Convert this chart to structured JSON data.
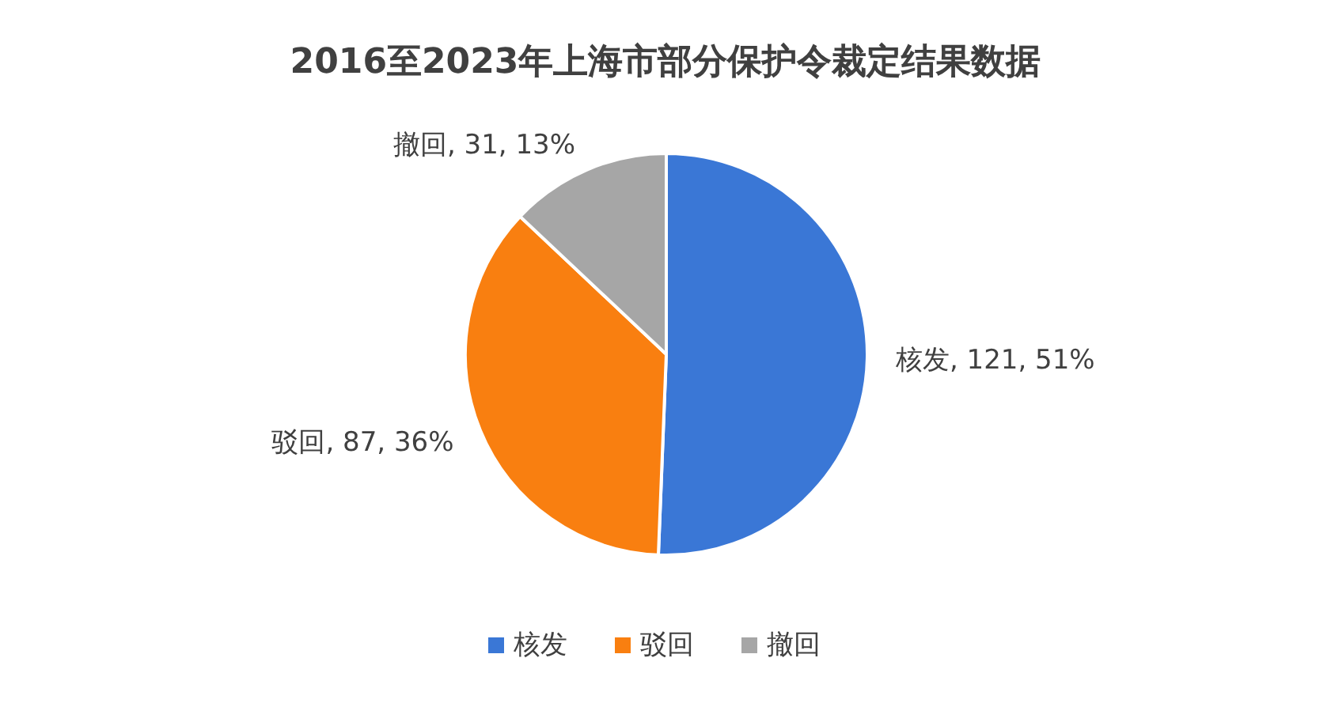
{
  "chart_data": {
    "type": "pie",
    "title": "2016至2023年上海市部分保护令裁定结果数据",
    "categories": [
      "核发",
      "驳回",
      "撤回"
    ],
    "values": [
      121,
      87,
      31
    ],
    "value_labels": [
      "核发, 121, 51%",
      "驳回, 87, 36%",
      "撤回, 31, 13%"
    ],
    "colors": [
      "#3a77d6",
      "#f97f10",
      "#a6a6a6"
    ],
    "legend": "bottom"
  }
}
